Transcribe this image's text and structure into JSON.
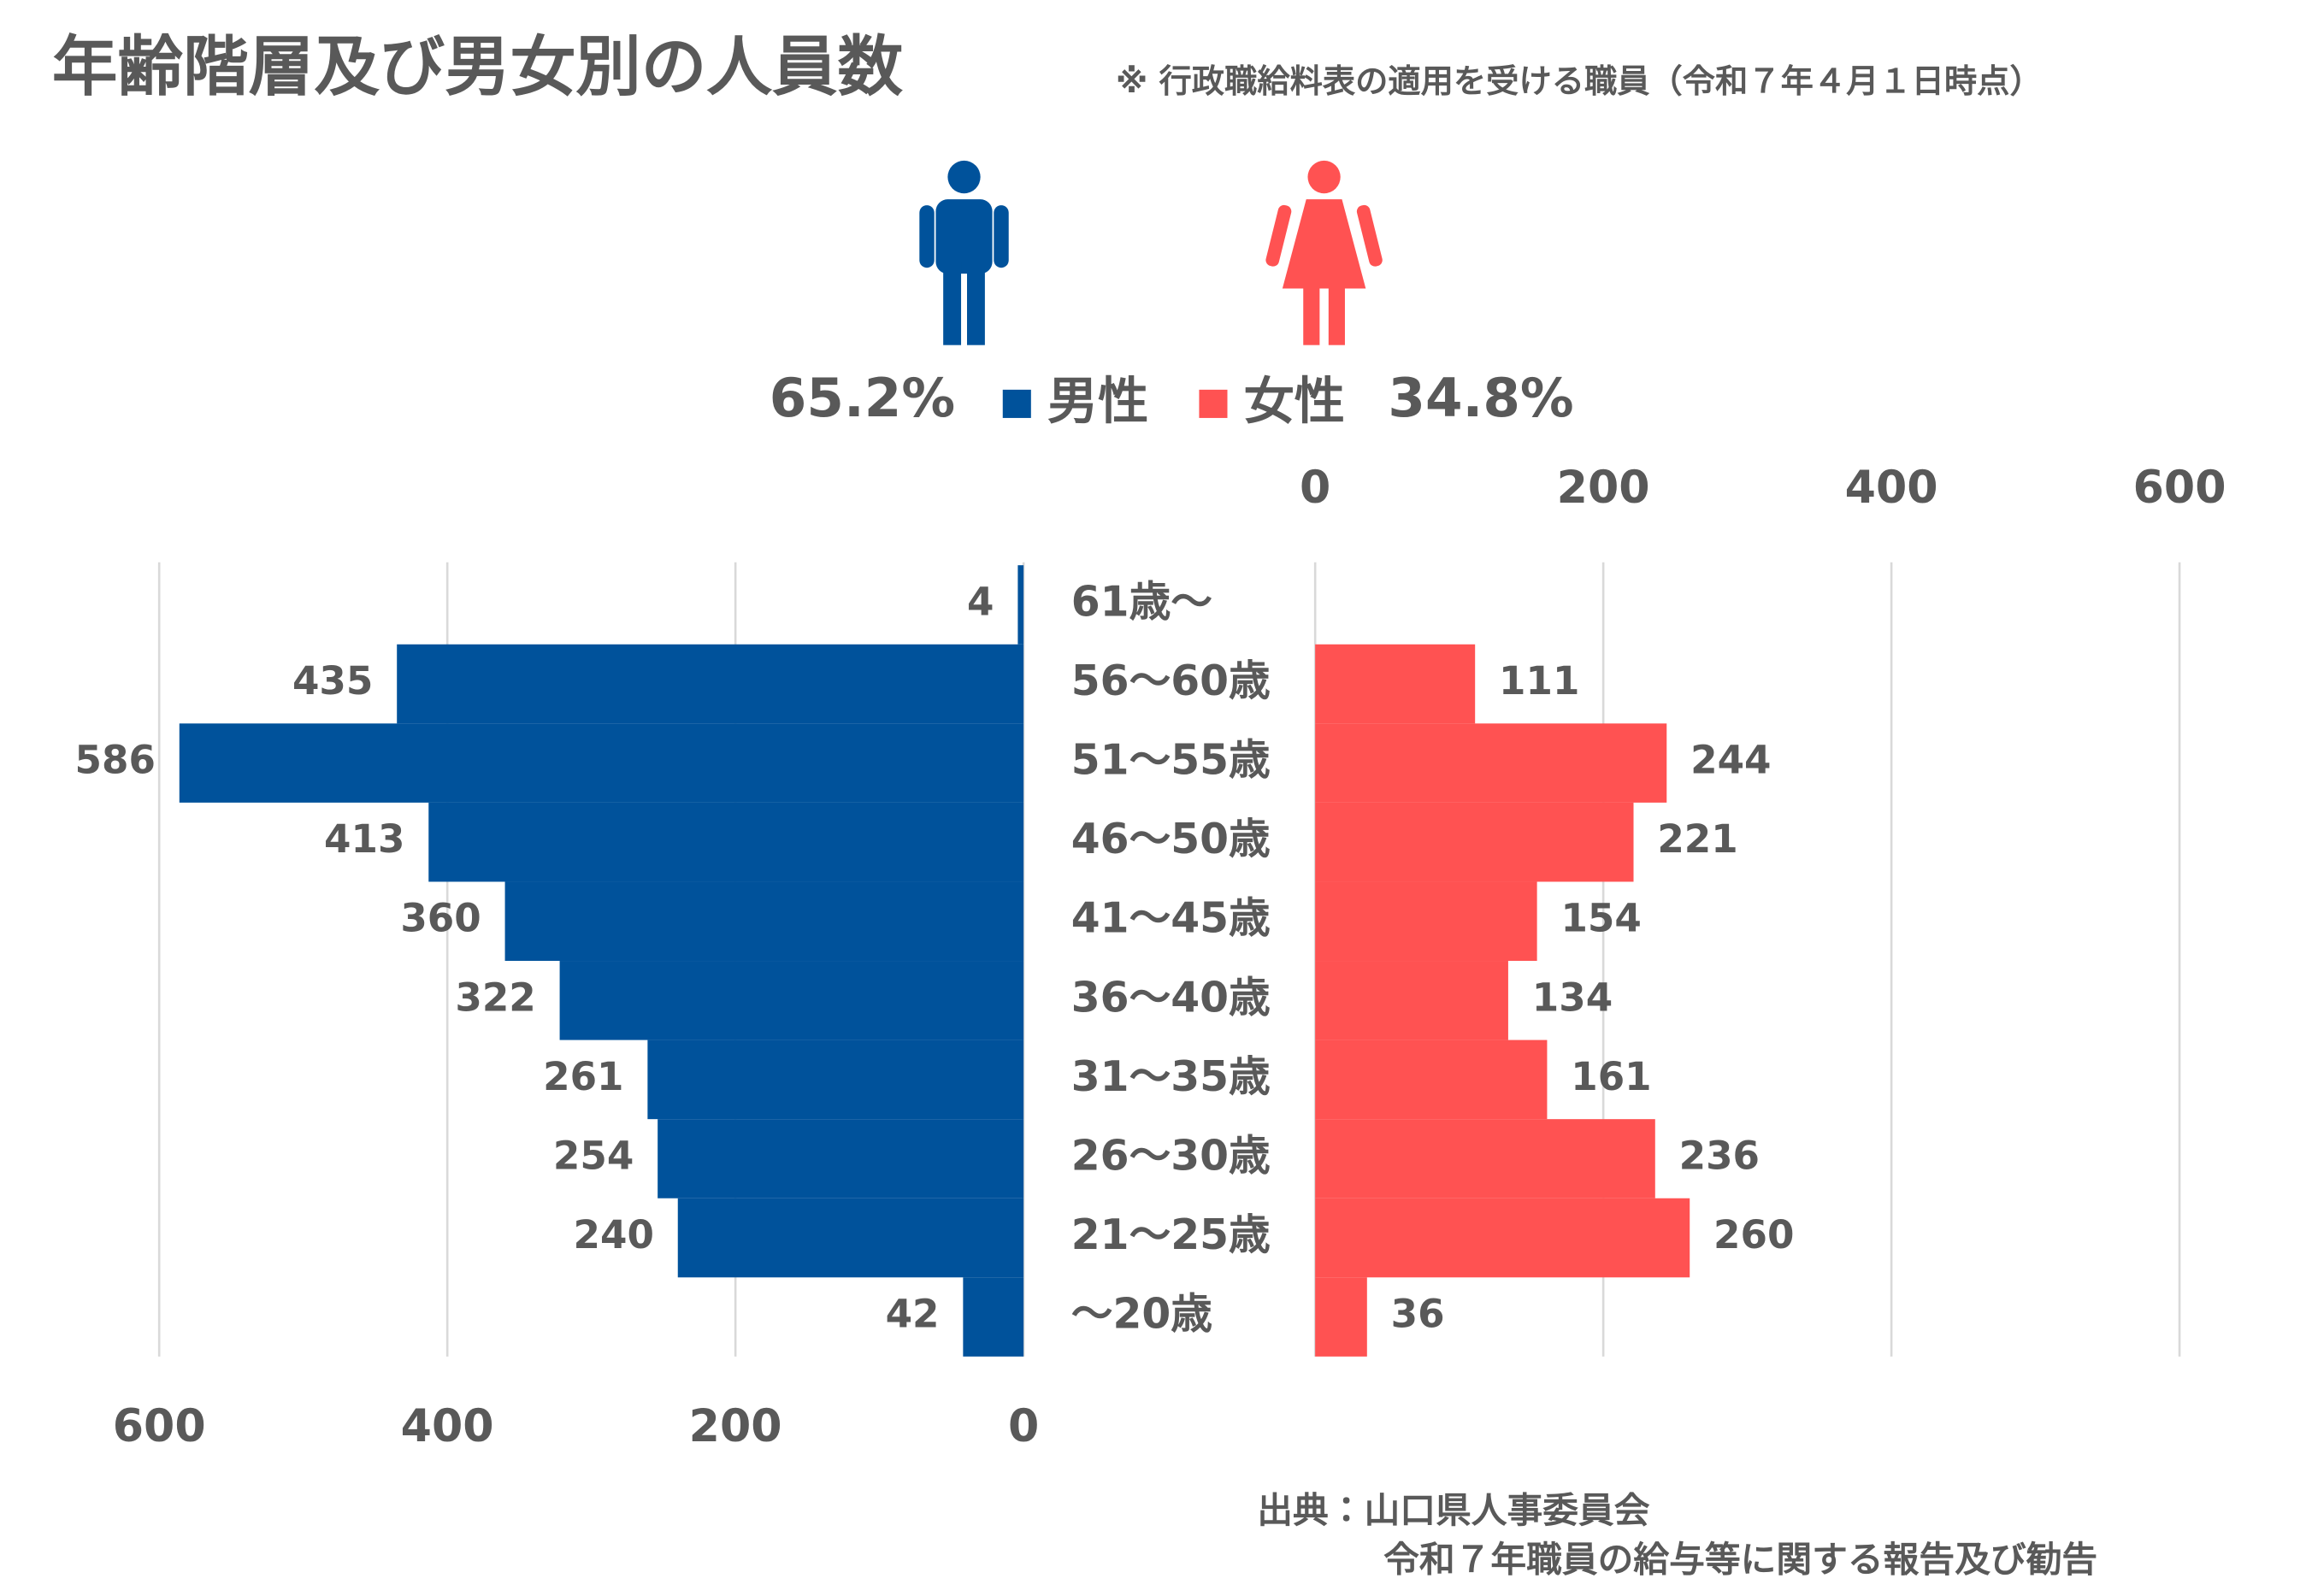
{
  "chart_data": {
    "type": "pyramid",
    "title": "年齢階層及び男女別の人員数",
    "subtitle": "※ 行政職給料表の適用を受ける職員（令和７年４月１日時点）",
    "categories": [
      "61歳～",
      "56～60歳",
      "51～55歳",
      "46～50歳",
      "41～45歳",
      "36～40歳",
      "31～35歳",
      "26～30歳",
      "21～25歳",
      "～20歳"
    ],
    "series": [
      {
        "name": "男性",
        "color": "#00529b",
        "share_label": "65.2%",
        "values": [
          4,
          435,
          586,
          413,
          360,
          322,
          261,
          254,
          240,
          42
        ]
      },
      {
        "name": "女性",
        "color": "#ff5252",
        "share_label": "34.8%",
        "values": [
          null,
          111,
          244,
          221,
          154,
          134,
          161,
          236,
          260,
          36
        ]
      }
    ],
    "xlim": [
      0,
      600
    ],
    "xticks": [
      0,
      200,
      400,
      600
    ],
    "grid": true,
    "source": [
      "出典：山口県人事委員会",
      "令和７年職員の給与等に関する報告及び勧告"
    ]
  }
}
